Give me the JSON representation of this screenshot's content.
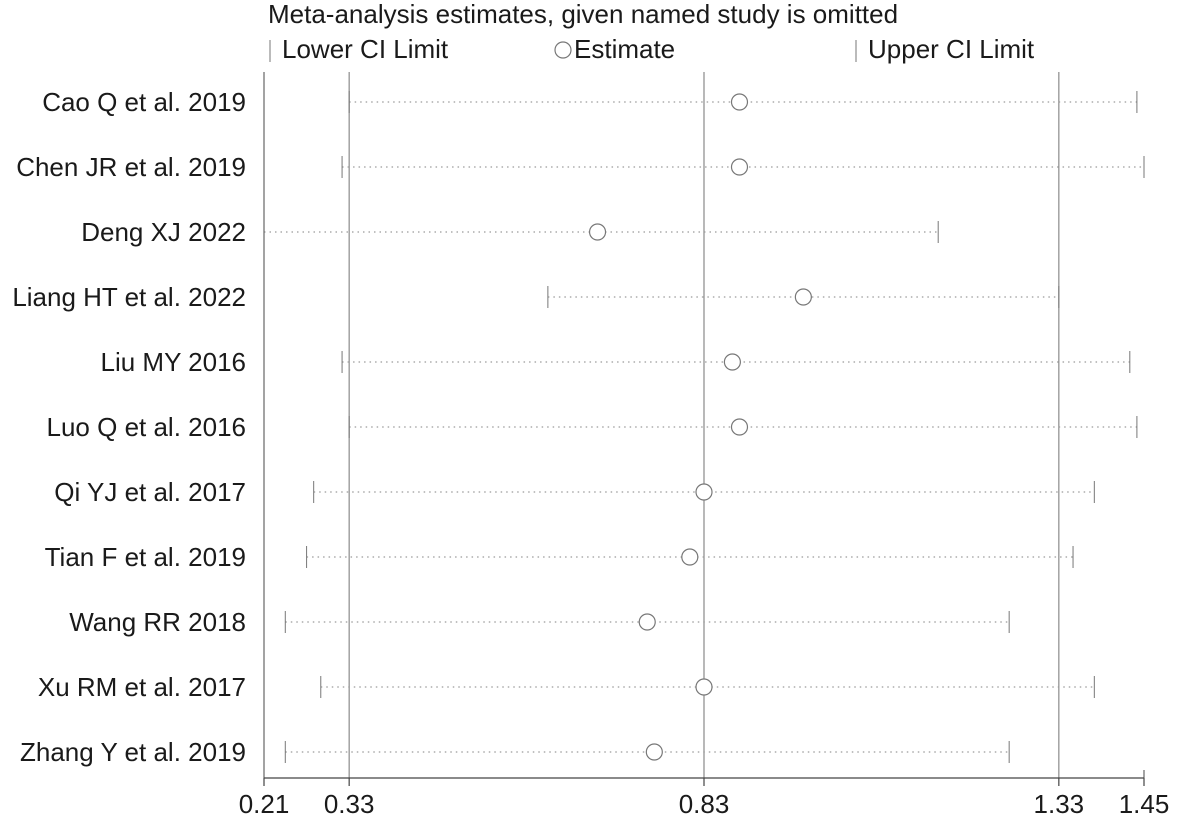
{
  "chart_data": {
    "type": "scatter",
    "title": "Meta-analysis estimates, given named study is omitted",
    "legend": [
      {
        "key": "lower",
        "label": "Lower CI Limit"
      },
      {
        "key": "estimate",
        "label": "Estimate"
      },
      {
        "key": "upper",
        "label": "Upper CI Limit"
      }
    ],
    "legend_position": "top",
    "xlim": [
      0.21,
      1.45
    ],
    "xticks": [
      "0.21",
      "0.33",
      "0.83",
      "1.33",
      "1.45"
    ],
    "reference_lines": [
      0.33,
      0.83,
      1.33
    ],
    "grid": false,
    "studies": [
      {
        "label": "Cao Q et al. 2019",
        "lower": 0.33,
        "estimate": 0.88,
        "upper": 1.44
      },
      {
        "label": "Chen JR et al. 2019",
        "lower": 0.32,
        "estimate": 0.88,
        "upper": 1.45
      },
      {
        "label": "Deng XJ 2022",
        "lower": 0.21,
        "estimate": 0.68,
        "upper": 1.16
      },
      {
        "label": "Liang HT et al. 2022",
        "lower": 0.61,
        "estimate": 0.97,
        "upper": 1.33
      },
      {
        "label": "Liu MY 2016",
        "lower": 0.32,
        "estimate": 0.87,
        "upper": 1.43
      },
      {
        "label": "Luo Q et al. 2016",
        "lower": 0.33,
        "estimate": 0.88,
        "upper": 1.44
      },
      {
        "label": "Qi YJ et al. 2017",
        "lower": 0.28,
        "estimate": 0.83,
        "upper": 1.38
      },
      {
        "label": "Tian F et al. 2019",
        "lower": 0.27,
        "estimate": 0.81,
        "upper": 1.35
      },
      {
        "label": "Wang RR 2018",
        "lower": 0.24,
        "estimate": 0.75,
        "upper": 1.26
      },
      {
        "label": "Xu RM et al. 2017",
        "lower": 0.29,
        "estimate": 0.83,
        "upper": 1.38
      },
      {
        "label": "Zhang Y et al. 2019",
        "lower": 0.24,
        "estimate": 0.76,
        "upper": 1.26
      }
    ]
  }
}
